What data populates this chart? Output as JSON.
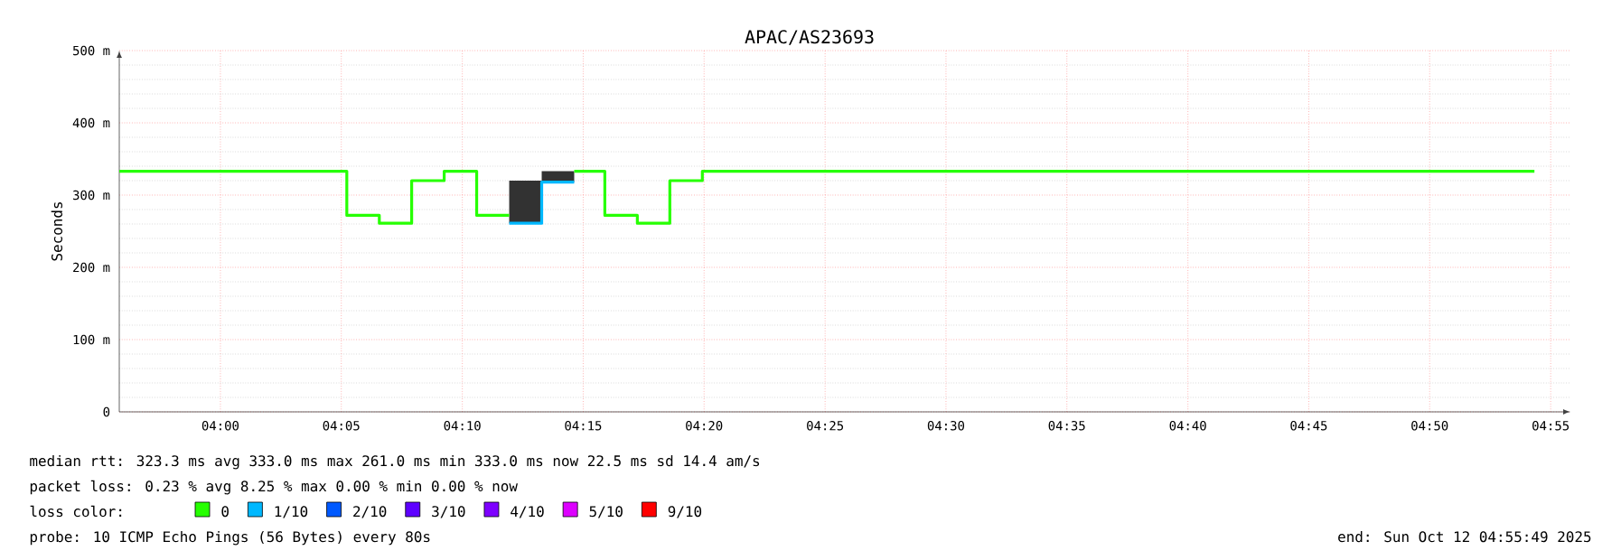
{
  "chart_data": {
    "type": "step",
    "title": "APAC/AS23693",
    "ylabel": "Seconds",
    "legend_title": "loss color:",
    "legend": "bottom",
    "grid": true,
    "xlim": [
      3.9303,
      4.9303
    ],
    "ylim": [
      0,
      500
    ],
    "xticks": [
      {
        "value": 4.0,
        "label": "04:00"
      },
      {
        "value": 4.0833,
        "label": "04:05"
      },
      {
        "value": 4.1667,
        "label": "04:10"
      },
      {
        "value": 4.25,
        "label": "04:15"
      },
      {
        "value": 4.3333,
        "label": "04:20"
      },
      {
        "value": 4.4167,
        "label": "04:25"
      },
      {
        "value": 4.5,
        "label": "04:30"
      },
      {
        "value": 4.5833,
        "label": "04:35"
      },
      {
        "value": 4.6667,
        "label": "04:40"
      },
      {
        "value": 4.75,
        "label": "04:45"
      },
      {
        "value": 4.8333,
        "label": "04:50"
      },
      {
        "value": 4.9167,
        "label": "04:55"
      }
    ],
    "yticks": [
      0,
      {
        "value": 100,
        "label": "100 m"
      },
      {
        "value": 200,
        "label": "200 m"
      },
      {
        "value": 300,
        "label": "300 m"
      },
      {
        "value": 400,
        "label": "400 m"
      },
      {
        "value": 500,
        "label": "500 m"
      }
    ],
    "series": [
      {
        "name": "0",
        "color": "#26ff00",
        "x": [
          3.9303,
          4.0871,
          4.1095,
          4.1318,
          4.1542,
          4.1766,
          4.199,
          4.2214,
          4.2438,
          4.2649,
          4.2873,
          4.3097,
          4.3321,
          4.9055
        ],
        "values": [
          333,
          272,
          261,
          320,
          333,
          272,
          null,
          null,
          333,
          272,
          261,
          320,
          333,
          333
        ]
      },
      {
        "name": "1/10",
        "color": "#00b8ff",
        "type": "line",
        "x": [
          4.199,
          4.2214,
          4.2214,
          4.2438
        ],
        "values": [
          261,
          261,
          318,
          318
        ],
        "lower": [
          261,
          261,
          318,
          318
        ],
        "upper": [
          320,
          320,
          333,
          333
        ]
      },
      {
        "name": "2/10",
        "color": "#0059ff"
      },
      {
        "name": "3/10",
        "color": "#5e00ff"
      },
      {
        "name": "4/10",
        "color": "#7e00ff"
      },
      {
        "name": "5/10",
        "color": "#dd00ff"
      },
      {
        "name": "9/10",
        "color": "#ff0000"
      }
    ],
    "annotations": [
      "median rtt:  323.3 ms avg  333.0 ms max  261.0 ms min  333.0 ms now  22.5 ms sd  14.4   am/s",
      "packet loss: 0.23 % avg  8.25 % max  0.00 % min  0.00 % now",
      "probe: 10 ICMP Echo Pings (56 Bytes) every 80s",
      "end: Sun Oct 12 04:55:49 2025"
    ]
  }
}
